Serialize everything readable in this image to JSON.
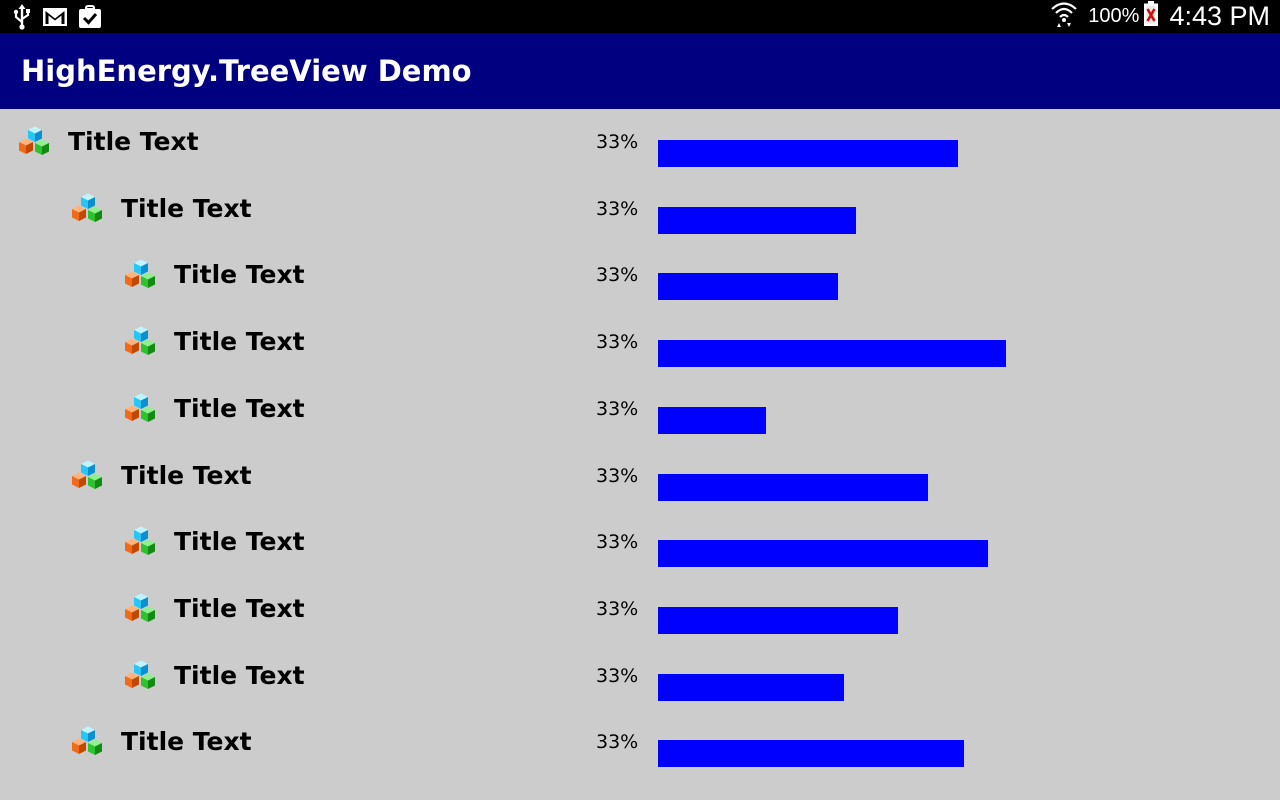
{
  "status_bar": {
    "icons": [
      "usb-icon",
      "gmail-icon",
      "task-check-icon",
      "wifi-icon",
      "battery-icon"
    ],
    "battery": "100%",
    "time": "4:43 PM"
  },
  "app": {
    "title": "HighEnergy.TreeView Demo",
    "header_color": "#000080",
    "background_color": "#cccccc",
    "bar_color": "#0000ff"
  },
  "tree": {
    "node_icon": "cubes-icon",
    "nodes": [
      {
        "title": "Title Text",
        "percent": "33%",
        "depth": 0,
        "bar_fraction": 0.5
      },
      {
        "title": "Title Text",
        "percent": "33%",
        "depth": 1,
        "bar_fraction": 0.33
      },
      {
        "title": "Title Text",
        "percent": "33%",
        "depth": 2,
        "bar_fraction": 0.3
      },
      {
        "title": "Title Text",
        "percent": "33%",
        "depth": 2,
        "bar_fraction": 0.58
      },
      {
        "title": "Title Text",
        "percent": "33%",
        "depth": 2,
        "bar_fraction": 0.18
      },
      {
        "title": "Title Text",
        "percent": "33%",
        "depth": 1,
        "bar_fraction": 0.45
      },
      {
        "title": "Title Text",
        "percent": "33%",
        "depth": 2,
        "bar_fraction": 0.55
      },
      {
        "title": "Title Text",
        "percent": "33%",
        "depth": 2,
        "bar_fraction": 0.4
      },
      {
        "title": "Title Text",
        "percent": "33%",
        "depth": 2,
        "bar_fraction": 0.31
      },
      {
        "title": "Title Text",
        "percent": "33%",
        "depth": 1,
        "bar_fraction": 0.51
      }
    ]
  }
}
